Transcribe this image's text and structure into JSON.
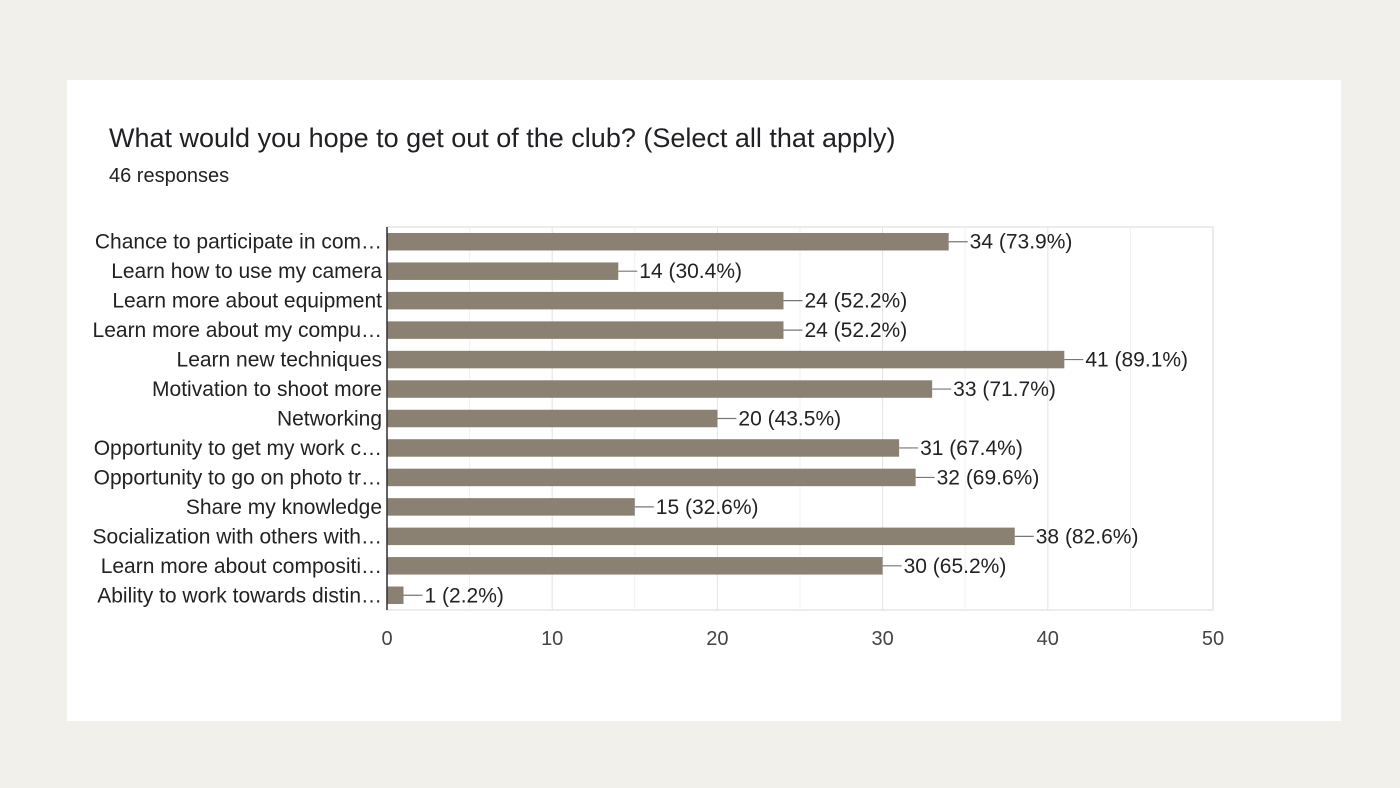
{
  "header": {
    "title": "What would you hope to get out of the club? (Select all that apply)",
    "responses": "46 responses"
  },
  "colors": {
    "bar": "#8a8172",
    "page_background": "#f2f0eb",
    "card_background": "#ffffff",
    "grid": "#e6e6e6",
    "axis": "#333333",
    "text": "#202124"
  },
  "chart_data": {
    "type": "bar",
    "orientation": "horizontal",
    "title": "What would you hope to get out of the club? (Select all that apply)",
    "subtitle": "46 responses",
    "categories": [
      "Chance to participate in com…",
      "Learn how to use my camera",
      "Learn more about equipment",
      "Learn more about my compu…",
      "Learn new techniques",
      "Motivation to shoot more",
      "Networking",
      "Opportunity to get my work c…",
      "Opportunity to go on photo tr…",
      "Share my knowledge",
      "Socialization with others with…",
      "Learn more about compositi…",
      "Ability to work towards distin…"
    ],
    "values": [
      34,
      14,
      24,
      24,
      41,
      33,
      20,
      31,
      32,
      15,
      38,
      30,
      1
    ],
    "data_labels": [
      "34 (73.9%)",
      "14 (30.4%)",
      "24 (52.2%)",
      "24 (52.2%)",
      "41 (89.1%)",
      "33 (71.7%)",
      "20 (43.5%)",
      "31 (67.4%)",
      "32 (69.6%)",
      "15 (32.6%)",
      "38 (82.6%)",
      "30 (65.2%)",
      "1 (2.2%)"
    ],
    "xlim": [
      0,
      50
    ],
    "x_ticks": [
      "0",
      "10",
      "20",
      "30",
      "40",
      "50"
    ],
    "grid": true,
    "legend": "none"
  }
}
